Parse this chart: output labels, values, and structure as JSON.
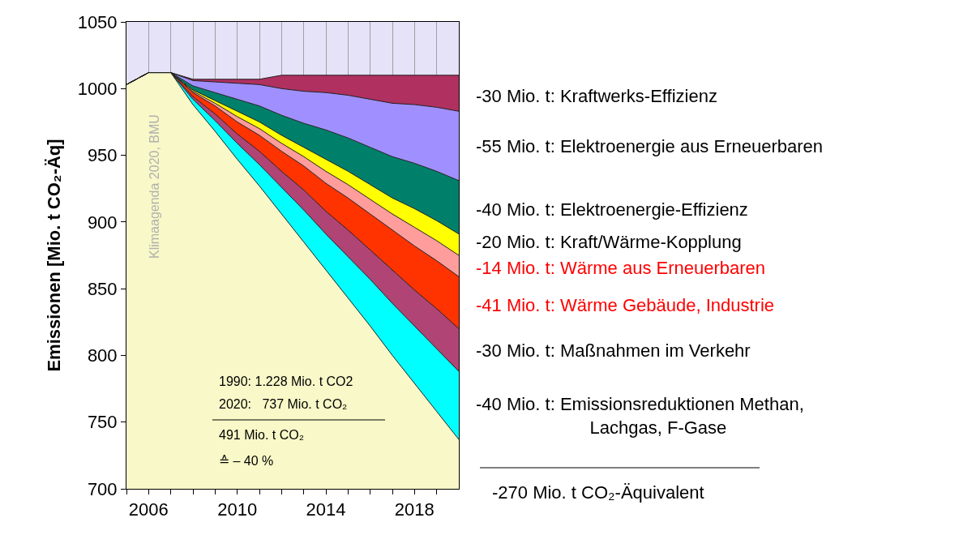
{
  "chart_data": {
    "type": "area",
    "ylabel": "Emissionen [Mio. t CO₂-Äq]",
    "x": [
      2005,
      2006,
      2007,
      2008,
      2009,
      2010,
      2011,
      2012,
      2013,
      2014,
      2015,
      2016,
      2017,
      2018,
      2019,
      2020
    ],
    "xlim": [
      2005,
      2020
    ],
    "xticks": [
      {
        "value": 2005,
        "label": null
      },
      2006,
      {
        "value": 2007,
        "label": null
      },
      {
        "value": 2008,
        "label": null
      },
      {
        "value": 2009,
        "label": null
      },
      2010,
      {
        "value": 2011,
        "label": null
      },
      {
        "value": 2012,
        "label": null
      },
      {
        "value": 2013,
        "label": null
      },
      2014,
      {
        "value": 2015,
        "label": null
      },
      {
        "value": 2016,
        "label": null
      },
      {
        "value": 2017,
        "label": null
      },
      2018,
      {
        "value": 2019,
        "label": null
      }
    ],
    "ylim": [
      700,
      1050
    ],
    "yticks": [
      700,
      750,
      800,
      850,
      900,
      950,
      1000,
      1050
    ],
    "grid": true,
    "series": [
      {
        "color": "#f8f8c8",
        "values": [
          1003,
          1012,
          1012,
          988,
          968,
          947,
          927,
          906,
          885,
          864,
          843,
          822,
          800,
          779,
          758,
          737
        ]
      },
      {
        "name": "-40 Mio. t: Emissionsreduktionen Methan,\nLachgas, F-Gase",
        "color": "#00ffff",
        "values": [
          1003,
          1012,
          1012,
          992,
          976,
          959,
          943,
          926,
          909,
          891,
          874,
          857,
          839,
          822,
          805,
          788
        ]
      },
      {
        "name": "-30 Mio. t: Maßnahmen im Verkehr",
        "color": "#b04475",
        "values": [
          1003,
          1012,
          1012,
          994,
          981,
          966,
          953,
          938,
          924,
          908,
          894,
          879,
          864,
          849,
          835,
          820
        ]
      },
      {
        "name": "-41 Mio. t: Wärme Gebäude, Industrie",
        "color": "#ff3300",
        "values": [
          1003,
          1012,
          1012,
          997,
          987,
          975,
          965,
          953,
          942,
          929,
          918,
          906,
          894,
          882,
          871,
          859
        ]
      },
      {
        "name": "-14 Mio. t: Wärme aus Erneuerbaren",
        "color": "#ff9c9c",
        "values": [
          1003,
          1012,
          1012,
          998,
          989,
          979,
          970,
          959,
          949,
          938,
          928,
          917,
          906,
          896,
          886,
          875
        ]
      },
      {
        "name": "-20 Mio. t: Kraft/Wärme-Kopplung",
        "color": "#ffff00",
        "values": [
          1003,
          1012,
          1012,
          999,
          991,
          983,
          975,
          965,
          956,
          947,
          938,
          928,
          918,
          910,
          901,
          891
        ]
      },
      {
        "name": "-40 Mio. t: Elektroenergie-Effizienz",
        "color": "#00806a",
        "values": [
          1003,
          1012,
          1012,
          1002,
          997,
          992,
          987,
          980,
          974,
          969,
          963,
          956,
          949,
          944,
          938,
          931
        ]
      },
      {
        "name": "-55 Mio. t: Elektroenergie aus Erneuerbaren",
        "color": "#a090ff",
        "values": [
          1003,
          1012,
          1012,
          1006,
          1005,
          1004,
          1003,
          1000,
          998,
          997,
          995,
          992,
          989,
          988,
          986,
          983
        ]
      },
      {
        "name": "-30 Mio. t: Kraftwerks-Effizienz",
        "color": "#b03060",
        "values": [
          1003,
          1012,
          1012,
          1007,
          1007,
          1007,
          1007,
          1010,
          1010,
          1010,
          1010,
          1010,
          1010,
          1010,
          1010,
          1010
        ]
      }
    ],
    "annotations": [
      "Klimaagenda 2020, BMU",
      "1990: 1.228 Mio. t CO2",
      "2020:   737 Mio. t CO₂",
      "491 Mio. t CO₂",
      "≙ – 40 %",
      "-270 Mio. t CO₂-Äquivalent"
    ]
  }
}
